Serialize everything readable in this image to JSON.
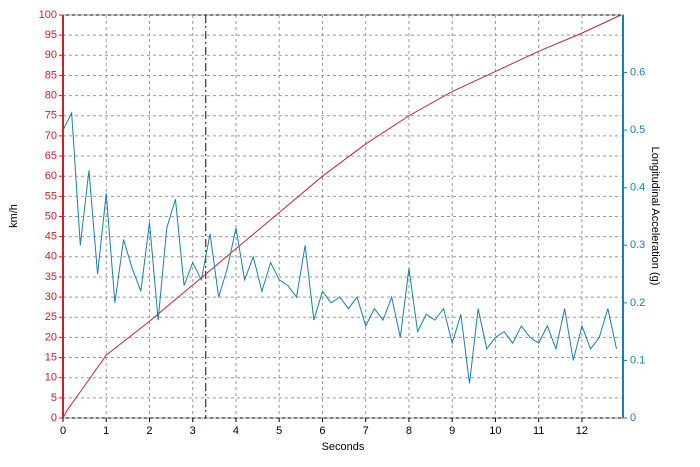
{
  "chart_data": {
    "type": "line",
    "xlabel": "Seconds",
    "ylabel": "km/h",
    "y2label": "Longitudinal Acceleration (g)",
    "xlim": [
      0,
      12.95
    ],
    "xticks": [
      0,
      1,
      2,
      3,
      4,
      5,
      6,
      7,
      8,
      9,
      10,
      11,
      12
    ],
    "ylim": [
      0,
      100
    ],
    "yticks": [
      0,
      5,
      10,
      15,
      20,
      25,
      30,
      35,
      40,
      45,
      50,
      55,
      60,
      65,
      70,
      75,
      80,
      85,
      90,
      95,
      100
    ],
    "y2lim": [
      0,
      0.7
    ],
    "y2ticks": [
      0,
      0.1,
      0.2,
      0.3,
      0.4,
      0.5,
      0.6
    ],
    "grid": true,
    "cursor_x": 3.3,
    "ycolor": "#cc1f26",
    "y2color": "#1a80aa",
    "series": [
      {
        "color": "#c0282e",
        "x": [
          0,
          0.1,
          0.5,
          1,
          2,
          3,
          4,
          5,
          6,
          7,
          8,
          9,
          10,
          11,
          12,
          12.9
        ],
        "values": [
          0,
          2,
          8,
          15.6,
          24,
          33,
          42,
          51,
          60,
          68,
          75,
          81,
          86,
          91,
          95.5,
          100
        ]
      },
      {
        "color": "#1a80aa",
        "axis": "y2",
        "x": [
          0,
          0.2,
          0.4,
          0.6,
          0.8,
          1,
          1.2,
          1.4,
          1.6,
          1.8,
          2,
          2.2,
          2.4,
          2.6,
          2.8,
          3,
          3.2,
          3.4,
          3.6,
          3.8,
          4,
          4.2,
          4.4,
          4.6,
          4.8,
          5,
          5.2,
          5.4,
          5.6,
          5.8,
          6,
          6.2,
          6.4,
          6.6,
          6.8,
          7,
          7.2,
          7.4,
          7.6,
          7.8,
          8,
          8.2,
          8.4,
          8.6,
          8.8,
          9,
          9.2,
          9.4,
          9.6,
          9.8,
          10,
          10.2,
          10.4,
          10.6,
          10.8,
          11,
          11.2,
          11.4,
          11.6,
          11.8,
          12,
          12.2,
          12.4,
          12.6,
          12.8
        ],
        "values": [
          0.5,
          0.53,
          0.3,
          0.43,
          0.25,
          0.39,
          0.2,
          0.31,
          0.26,
          0.22,
          0.34,
          0.17,
          0.33,
          0.38,
          0.23,
          0.27,
          0.24,
          0.32,
          0.21,
          0.26,
          0.33,
          0.24,
          0.28,
          0.22,
          0.27,
          0.24,
          0.23,
          0.21,
          0.3,
          0.17,
          0.22,
          0.2,
          0.21,
          0.19,
          0.21,
          0.16,
          0.19,
          0.17,
          0.21,
          0.14,
          0.26,
          0.15,
          0.18,
          0.17,
          0.19,
          0.13,
          0.18,
          0.06,
          0.19,
          0.12,
          0.14,
          0.15,
          0.13,
          0.16,
          0.14,
          0.13,
          0.16,
          0.12,
          0.19,
          0.1,
          0.16,
          0.12,
          0.14,
          0.19,
          0.12
        ]
      }
    ]
  }
}
